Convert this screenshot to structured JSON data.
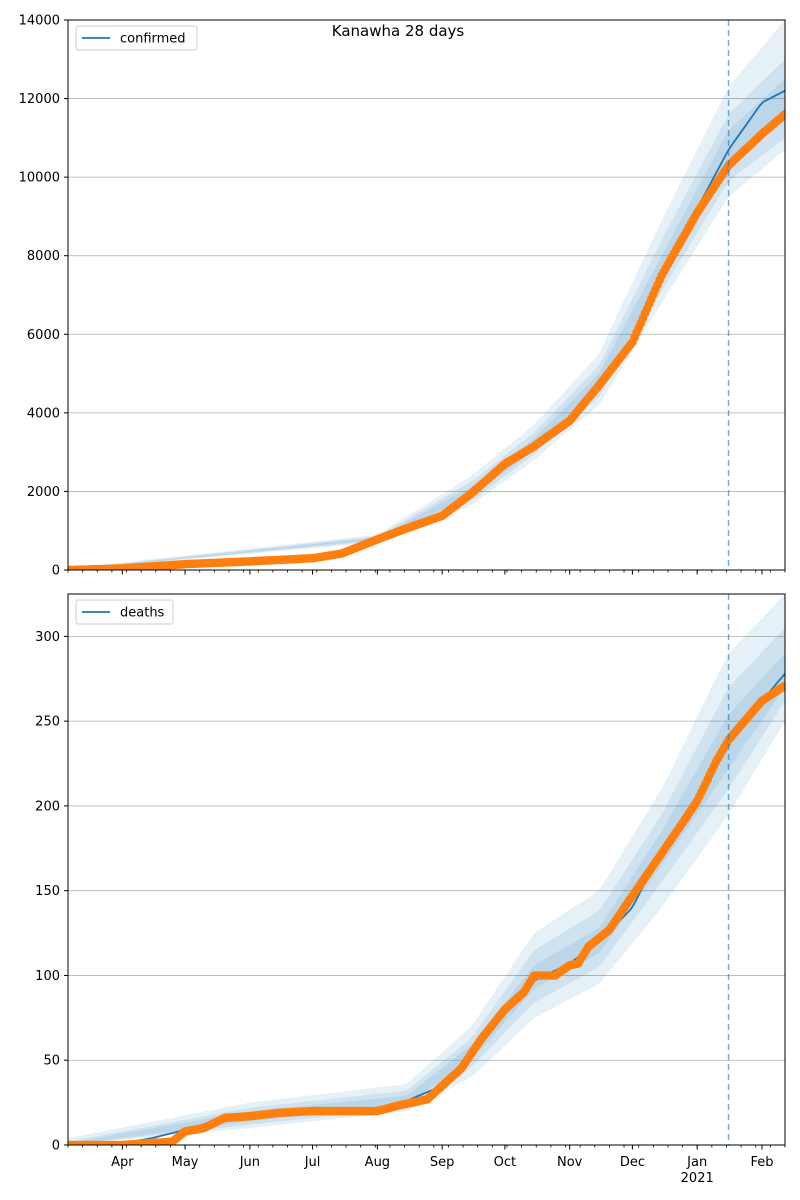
{
  "figure": {
    "title": "Kanawha 28 days"
  },
  "colors": {
    "model_line": "#1f77b4",
    "observed": "#ff7f0e",
    "band": "#1f77b4",
    "grid": "#b0b0b0",
    "forecast_marker": "#1f77b4"
  },
  "x_axis": {
    "tick_labels": [
      {
        "label": "Apr",
        "date": "2020-04-01"
      },
      {
        "label": "May",
        "date": "2020-05-01"
      },
      {
        "label": "Jun",
        "date": "2020-06-01"
      },
      {
        "label": "Jul",
        "date": "2020-07-01"
      },
      {
        "label": "Aug",
        "date": "2020-08-01"
      },
      {
        "label": "Sep",
        "date": "2020-09-01"
      },
      {
        "label": "Oct",
        "date": "2020-10-01"
      },
      {
        "label": "Nov",
        "date": "2020-11-01"
      },
      {
        "label": "Dec",
        "date": "2020-12-01"
      },
      {
        "label": "Jan",
        "date": "2021-01-01"
      },
      {
        "label": "Feb",
        "date": "2021-02-01"
      }
    ],
    "year_label": "2021",
    "range": [
      "2020-03-06",
      "2021-02-12"
    ],
    "forecast_start": "2021-01-16"
  },
  "chart_data": [
    {
      "type": "line",
      "legend": "confirmed",
      "legend_position": "top-left",
      "grid": true,
      "ylim": [
        0,
        14000
      ],
      "yticks": [
        0,
        2000,
        4000,
        6000,
        8000,
        10000,
        12000,
        14000
      ],
      "model_points": [
        [
          "2020-03-06",
          0
        ],
        [
          "2020-04-01",
          30
        ],
        [
          "2020-05-01",
          150
        ],
        [
          "2020-06-01",
          220
        ],
        [
          "2020-07-01",
          300
        ],
        [
          "2020-07-15",
          430
        ],
        [
          "2020-08-01",
          800
        ],
        [
          "2020-08-15",
          1050
        ],
        [
          "2020-09-01",
          1400
        ],
        [
          "2020-09-15",
          2000
        ],
        [
          "2020-10-01",
          2800
        ],
        [
          "2020-10-15",
          3200
        ],
        [
          "2020-11-01",
          3900
        ],
        [
          "2020-11-15",
          4800
        ],
        [
          "2020-12-01",
          5900
        ],
        [
          "2020-12-15",
          7600
        ],
        [
          "2021-01-01",
          9200
        ],
        [
          "2021-01-16",
          10700
        ],
        [
          "2021-02-01",
          11900
        ],
        [
          "2021-02-12",
          12200
        ]
      ],
      "observed_points": [
        [
          "2020-03-06",
          0
        ],
        [
          "2020-04-01",
          40
        ],
        [
          "2020-05-01",
          150
        ],
        [
          "2020-06-01",
          220
        ],
        [
          "2020-07-01",
          300
        ],
        [
          "2020-07-15",
          420
        ],
        [
          "2020-08-01",
          780
        ],
        [
          "2020-08-15",
          1060
        ],
        [
          "2020-09-01",
          1380
        ],
        [
          "2020-09-15",
          1950
        ],
        [
          "2020-10-01",
          2700
        ],
        [
          "2020-10-15",
          3150
        ],
        [
          "2020-11-01",
          3800
        ],
        [
          "2020-11-15",
          4700
        ],
        [
          "2020-12-01",
          5800
        ],
        [
          "2020-12-15",
          7500
        ],
        [
          "2021-01-01",
          9100
        ],
        [
          "2021-01-16",
          10300
        ],
        [
          "2021-02-01",
          11100
        ],
        [
          "2021-02-12",
          11600
        ]
      ],
      "bands": [
        {
          "upper": [
            [
              "2020-03-06",
              40
            ],
            [
              "2020-08-01",
              900
            ],
            [
              "2020-09-15",
              2400
            ],
            [
              "2020-10-15",
              3700
            ],
            [
              "2020-11-15",
              5500
            ],
            [
              "2020-12-15",
              8900
            ],
            [
              "2021-01-16",
              12300
            ],
            [
              "2021-02-12",
              14000
            ]
          ],
          "lower": [
            [
              "2020-03-06",
              0
            ],
            [
              "2020-08-01",
              700
            ],
            [
              "2020-09-15",
              1650
            ],
            [
              "2020-10-15",
              2800
            ],
            [
              "2020-11-15",
              4200
            ],
            [
              "2020-12-15",
              6800
            ],
            [
              "2021-01-16",
              9500
            ],
            [
              "2021-02-12",
              10700
            ]
          ]
        },
        {
          "upper": [
            [
              "2020-03-06",
              25
            ],
            [
              "2020-08-01",
              860
            ],
            [
              "2020-09-15",
              2250
            ],
            [
              "2020-10-15",
              3500
            ],
            [
              "2020-11-15",
              5200
            ],
            [
              "2020-12-15",
              8400
            ],
            [
              "2021-01-16",
              11600
            ],
            [
              "2021-02-12",
              13000
            ]
          ],
          "lower": [
            [
              "2020-03-06",
              0
            ],
            [
              "2020-08-01",
              740
            ],
            [
              "2020-09-15",
              1750
            ],
            [
              "2020-10-15",
              2950
            ],
            [
              "2020-11-15",
              4400
            ],
            [
              "2020-12-15",
              7100
            ],
            [
              "2021-01-16",
              9900
            ],
            [
              "2021-02-12",
              11000
            ]
          ]
        },
        {
          "upper": [
            [
              "2020-03-06",
              12
            ],
            [
              "2020-08-01",
              830
            ],
            [
              "2020-09-15",
              2120
            ],
            [
              "2020-10-15",
              3350
            ],
            [
              "2020-11-15",
              5000
            ],
            [
              "2020-12-15",
              8000
            ],
            [
              "2021-01-16",
              11200
            ],
            [
              "2021-02-12",
              12500
            ]
          ],
          "lower": [
            [
              "2020-03-06",
              0
            ],
            [
              "2020-08-01",
              770
            ],
            [
              "2020-09-15",
              1870
            ],
            [
              "2020-10-15",
              3050
            ],
            [
              "2020-11-15",
              4600
            ],
            [
              "2020-12-15",
              7300
            ],
            [
              "2021-01-16",
              10200
            ],
            [
              "2021-02-12",
              11500
            ]
          ]
        }
      ]
    },
    {
      "type": "line",
      "legend": "deaths",
      "legend_position": "top-left",
      "grid": true,
      "ylim": [
        0,
        325
      ],
      "yticks": [
        0,
        50,
        100,
        150,
        200,
        250,
        300
      ],
      "model_points": [
        [
          "2020-03-06",
          0
        ],
        [
          "2020-04-01",
          1
        ],
        [
          "2020-04-15",
          4
        ],
        [
          "2020-05-01",
          9
        ],
        [
          "2020-05-15",
          14
        ],
        [
          "2020-06-01",
          17
        ],
        [
          "2020-07-01",
          19
        ],
        [
          "2020-08-01",
          22
        ],
        [
          "2020-08-15",
          26
        ],
        [
          "2020-09-01",
          35
        ],
        [
          "2020-09-15",
          55
        ],
        [
          "2020-10-01",
          80
        ],
        [
          "2020-10-15",
          97
        ],
        [
          "2020-11-01",
          107
        ],
        [
          "2020-11-15",
          120
        ],
        [
          "2020-12-01",
          140
        ],
        [
          "2020-12-15",
          175
        ],
        [
          "2021-01-01",
          205
        ],
        [
          "2021-01-16",
          237
        ],
        [
          "2021-02-01",
          262
        ],
        [
          "2021-02-12",
          278
        ]
      ],
      "observed_points": [
        [
          "2020-03-06",
          0
        ],
        [
          "2020-04-01",
          0
        ],
        [
          "2020-04-25",
          2
        ],
        [
          "2020-05-01",
          8
        ],
        [
          "2020-05-10",
          10
        ],
        [
          "2020-05-20",
          16
        ],
        [
          "2020-06-01",
          17
        ],
        [
          "2020-06-15",
          19
        ],
        [
          "2020-07-01",
          20
        ],
        [
          "2020-07-15",
          20
        ],
        [
          "2020-08-01",
          20
        ],
        [
          "2020-08-10",
          23
        ],
        [
          "2020-08-25",
          27
        ],
        [
          "2020-09-01",
          35
        ],
        [
          "2020-09-10",
          45
        ],
        [
          "2020-09-20",
          63
        ],
        [
          "2020-10-01",
          80
        ],
        [
          "2020-10-10",
          90
        ],
        [
          "2020-10-15",
          100
        ],
        [
          "2020-10-25",
          100
        ],
        [
          "2020-11-01",
          106
        ],
        [
          "2020-11-05",
          107
        ],
        [
          "2020-11-10",
          117
        ],
        [
          "2020-11-20",
          127
        ],
        [
          "2020-12-01",
          147
        ],
        [
          "2020-12-15",
          172
        ],
        [
          "2020-12-25",
          190
        ],
        [
          "2021-01-01",
          203
        ],
        [
          "2021-01-10",
          226
        ],
        [
          "2021-01-16",
          239
        ],
        [
          "2021-01-25",
          252
        ],
        [
          "2021-02-01",
          262
        ],
        [
          "2021-02-12",
          271
        ]
      ],
      "bands": [
        {
          "upper": [
            [
              "2020-03-06",
              4
            ],
            [
              "2020-06-01",
              25
            ],
            [
              "2020-08-15",
              36
            ],
            [
              "2020-09-15",
              70
            ],
            [
              "2020-10-15",
              125
            ],
            [
              "2020-11-15",
              150
            ],
            [
              "2020-12-15",
              210
            ],
            [
              "2021-01-16",
              290
            ],
            [
              "2021-02-12",
              325
            ]
          ],
          "lower": [
            [
              "2020-03-06",
              0
            ],
            [
              "2020-06-01",
              10
            ],
            [
              "2020-08-15",
              20
            ],
            [
              "2020-09-15",
              40
            ],
            [
              "2020-10-15",
              75
            ],
            [
              "2020-11-15",
              95
            ],
            [
              "2020-12-15",
              140
            ],
            [
              "2021-01-16",
              195
            ],
            [
              "2021-02-12",
              250
            ]
          ]
        },
        {
          "upper": [
            [
              "2020-03-06",
              2
            ],
            [
              "2020-06-01",
              22
            ],
            [
              "2020-08-15",
              32
            ],
            [
              "2020-09-15",
              63
            ],
            [
              "2020-10-15",
              115
            ],
            [
              "2020-11-15",
              138
            ],
            [
              "2020-12-15",
              195
            ],
            [
              "2021-01-16",
              270
            ],
            [
              "2021-02-12",
              305
            ]
          ],
          "lower": [
            [
              "2020-03-06",
              0
            ],
            [
              "2020-06-01",
              12
            ],
            [
              "2020-08-15",
              22
            ],
            [
              "2020-09-15",
              46
            ],
            [
              "2020-10-15",
              84
            ],
            [
              "2020-11-15",
              105
            ],
            [
              "2020-12-15",
              155
            ],
            [
              "2021-01-16",
              210
            ],
            [
              "2021-02-12",
              262
            ]
          ]
        },
        {
          "upper": [
            [
              "2020-03-06",
              1
            ],
            [
              "2020-06-01",
              20
            ],
            [
              "2020-08-15",
              29
            ],
            [
              "2020-09-15",
              59
            ],
            [
              "2020-10-15",
              106
            ],
            [
              "2020-11-15",
              128
            ],
            [
              "2020-12-15",
              185
            ],
            [
              "2021-01-16",
              254
            ],
            [
              "2021-02-12",
              290
            ]
          ],
          "lower": [
            [
              "2020-03-06",
              0
            ],
            [
              "2020-06-01",
              14
            ],
            [
              "2020-08-15",
              24
            ],
            [
              "2020-09-15",
              50
            ],
            [
              "2020-10-15",
              92
            ],
            [
              "2020-11-15",
              113
            ],
            [
              "2020-12-15",
              165
            ],
            [
              "2021-01-16",
              222
            ],
            [
              "2021-02-12",
              270
            ]
          ]
        }
      ]
    }
  ]
}
